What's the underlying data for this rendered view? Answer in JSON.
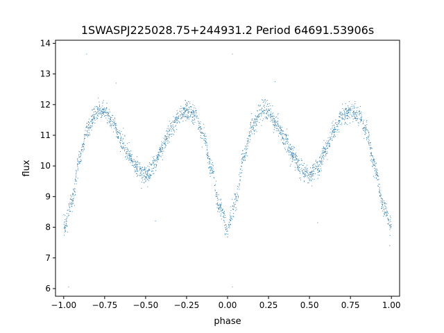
{
  "chart_data": {
    "type": "scatter",
    "title": "1SWASPJ225028.75+244931.2 Period 64691.53906s",
    "xlabel": "phase",
    "ylabel": "flux",
    "xlim": [
      -1.05,
      1.05
    ],
    "ylim": [
      5.75,
      14.1
    ],
    "xticks": [
      -1.0,
      -0.75,
      -0.5,
      -0.25,
      0.0,
      0.25,
      0.5,
      0.75,
      1.0
    ],
    "xtick_labels": [
      "−1.00",
      "−0.75",
      "−0.50",
      "−0.25",
      "0.00",
      "0.25",
      "0.50",
      "0.75",
      "1.00"
    ],
    "yticks": [
      6,
      7,
      8,
      9,
      10,
      11,
      12,
      13,
      14
    ],
    "ytick_labels": [
      "6",
      "7",
      "8",
      "9",
      "10",
      "11",
      "12",
      "13",
      "14"
    ],
    "grid": false,
    "legend": "none",
    "point_color": "#1f77b4",
    "series": [
      {
        "profile": {
          "phase": [
            0.0,
            0.05,
            0.1,
            0.15,
            0.2,
            0.25,
            0.3,
            0.35,
            0.4,
            0.45,
            0.5,
            0.55,
            0.6,
            0.65,
            0.7,
            0.75,
            0.8,
            0.85,
            0.9,
            0.95,
            1.0
          ],
          "flux": [
            8.0,
            8.85,
            10.3,
            11.25,
            11.75,
            11.8,
            11.4,
            10.85,
            10.35,
            9.9,
            9.65,
            9.95,
            10.55,
            11.15,
            11.6,
            11.8,
            11.65,
            11.05,
            9.95,
            8.7,
            8.0
          ]
        },
        "points_per_cycle": 1300,
        "scatter_sigma": 0.15,
        "outliers": [
          {
            "x": -0.97,
            "y": 6.05
          },
          {
            "x": -0.86,
            "y": 13.65
          },
          {
            "x": -0.68,
            "y": 12.7
          },
          {
            "x": 0.03,
            "y": 13.65
          },
          {
            "x": 0.29,
            "y": 12.75
          },
          {
            "x": 0.85,
            "y": 11.35
          },
          {
            "x": -0.44,
            "y": 8.2
          },
          {
            "x": 0.55,
            "y": 8.15
          },
          {
            "x": 0.03,
            "y": 6.05
          },
          {
            "x": 0.99,
            "y": 7.4
          }
        ]
      }
    ]
  }
}
